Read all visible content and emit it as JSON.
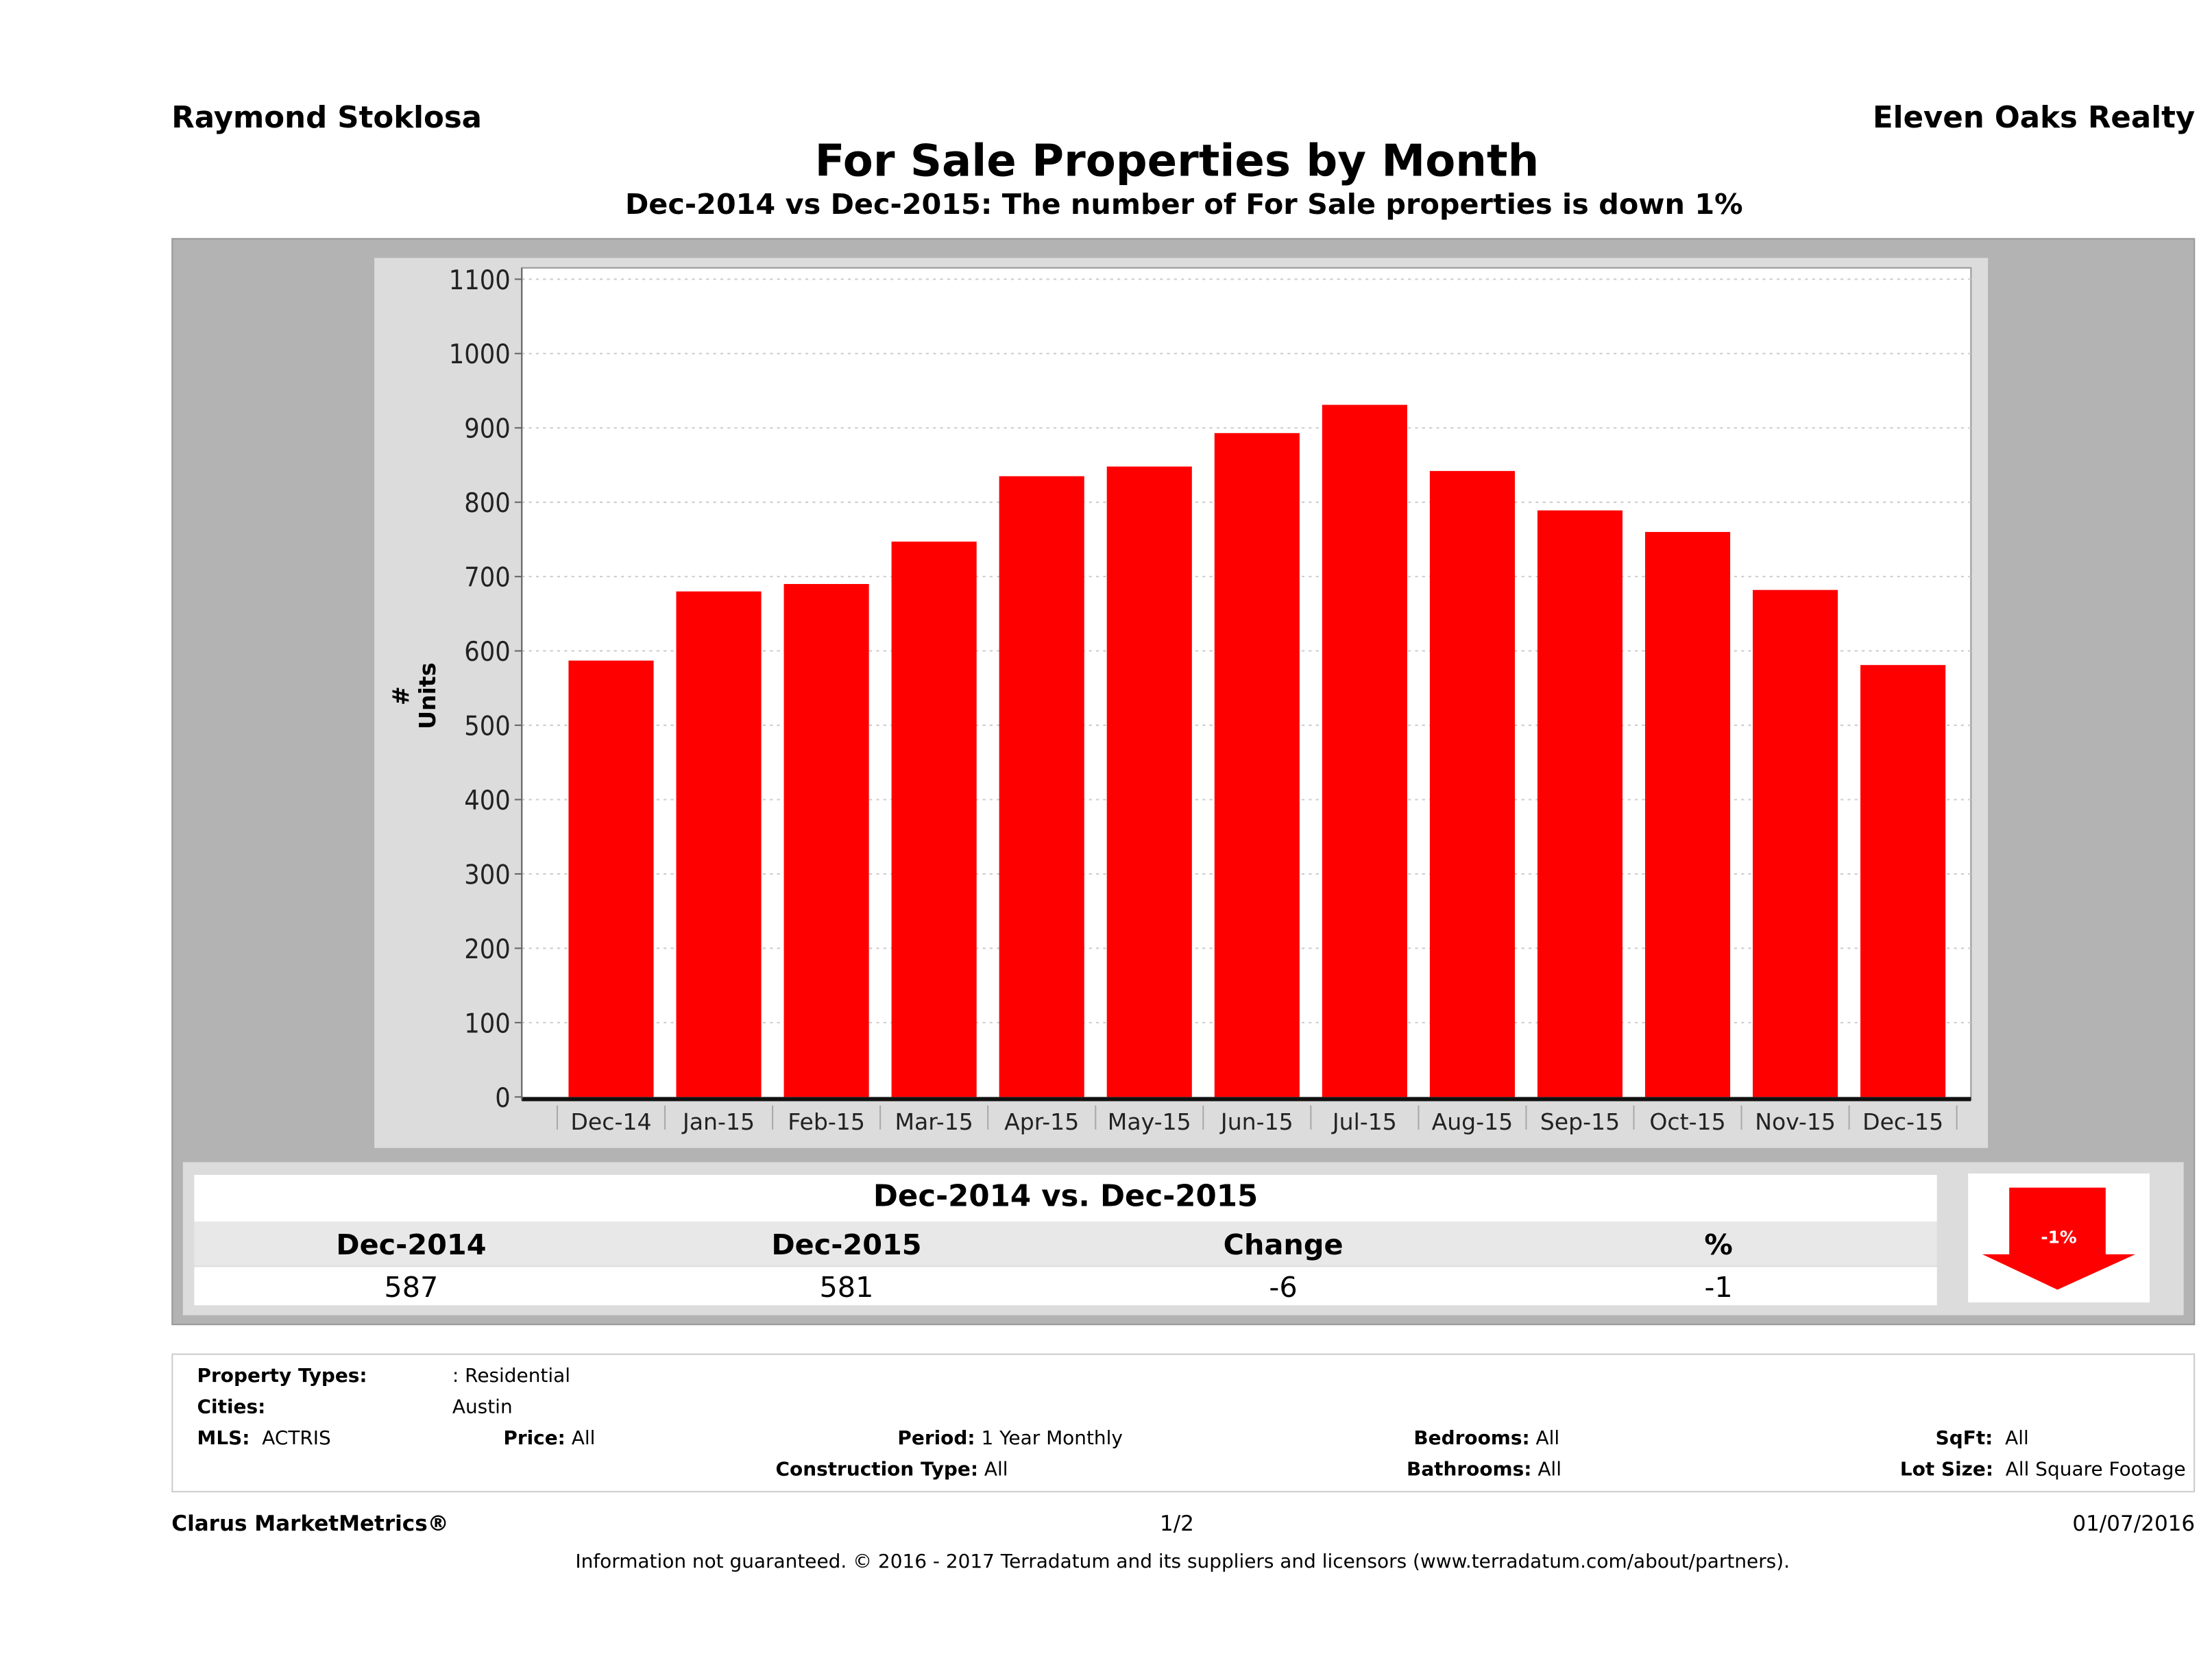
{
  "header": {
    "agent": "Raymond Stoklosa",
    "brokerage": "Eleven Oaks Realty",
    "title": "For Sale Properties by Month",
    "subtitle": "Dec-2014 vs Dec-2015: The number of For Sale  properties is down 1%"
  },
  "chart_data": {
    "type": "bar",
    "ylabel": "# Units",
    "xlabel": "",
    "ylim": [
      0,
      1100
    ],
    "yticks": [
      0,
      100,
      200,
      300,
      400,
      500,
      600,
      700,
      800,
      900,
      1000,
      1100
    ],
    "grid": true,
    "bar_color": "#ff0000",
    "categories": [
      "Dec-14",
      "Jan-15",
      "Feb-15",
      "Mar-15",
      "Apr-15",
      "May-15",
      "Jun-15",
      "Jul-15",
      "Aug-15",
      "Sep-15",
      "Oct-15",
      "Nov-15",
      "Dec-15"
    ],
    "values": [
      587,
      680,
      690,
      747,
      835,
      848,
      893,
      931,
      842,
      789,
      760,
      682,
      581
    ]
  },
  "summary": {
    "title": "Dec-2014 vs. Dec-2015",
    "headers": [
      "Dec-2014",
      "Dec-2015",
      "Change",
      "%"
    ],
    "values": [
      "587",
      "581",
      "-6",
      "-1"
    ],
    "badge": "-1%",
    "badge_icon": "down-arrow-icon",
    "badge_color": "#ff0000"
  },
  "filters": {
    "property_types_label": "Property Types:",
    "property_types": ": Residential",
    "cities_label": "Cities:",
    "cities": "Austin",
    "mls_label": "MLS:",
    "mls": "ACTRIS",
    "price_label": "Price:",
    "price": "All",
    "period_label": "Period:",
    "period": "1 Year Monthly",
    "bedrooms_label": "Bedrooms:",
    "bedrooms": "All",
    "sqft_label": "SqFt:",
    "sqft": "All",
    "construction_label": "Construction Type:",
    "construction": "All",
    "bathrooms_label": "Bathrooms:",
    "bathrooms": "All",
    "lot_label": "Lot Size:",
    "lot": "All Square Footage"
  },
  "footer": {
    "brand": "Clarus MarketMetrics®",
    "page": "1/2",
    "date": "01/07/2016",
    "disclaimer": "Information not guaranteed. © 2016 - 2017 Terradatum and its suppliers and licensors (www.terradatum.com/about/partners)."
  }
}
